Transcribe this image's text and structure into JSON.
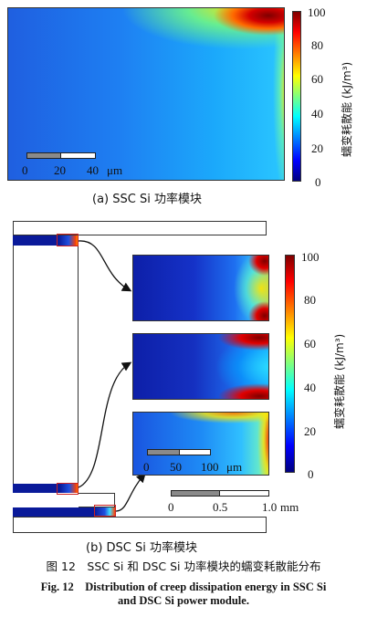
{
  "colors": {
    "background": "#ffffff",
    "frame": "#222222",
    "callout": "#cc2222",
    "jet_low": "#00007f",
    "jet_high": "#7f0000"
  },
  "panel_a": {
    "caption": "(a) SSC Si 功率模块",
    "colorbar_label": "蠕变耗散能 (kJ/m³)",
    "colorbar_ticks": [
      "100",
      "80",
      "60",
      "40",
      "20",
      "0"
    ],
    "scalebar_ticks": [
      "0",
      "20",
      "40"
    ],
    "scalebar_unit": "μm"
  },
  "panel_b": {
    "caption": "(b) DSC Si 功率模块",
    "colorbar_label": "蠕变耗散能 (kJ/m³)",
    "colorbar_ticks": [
      "100",
      "80",
      "60",
      "40",
      "20",
      "0"
    ],
    "zoom_scalebar_ticks": [
      "0",
      "50",
      "100"
    ],
    "zoom_scalebar_unit": "μm",
    "main_scalebar_ticks": [
      "0",
      "0.5",
      "1.0"
    ],
    "main_scalebar_unit": "mm"
  },
  "figure": {
    "caption_cn": "图 12　SSC Si 和 DSC Si 功率模块的蠕变耗散能分布",
    "caption_en_line1": "Fig. 12　Distribution of creep dissipation energy in SSC Si",
    "caption_en_line2": "and DSC Si power module."
  }
}
